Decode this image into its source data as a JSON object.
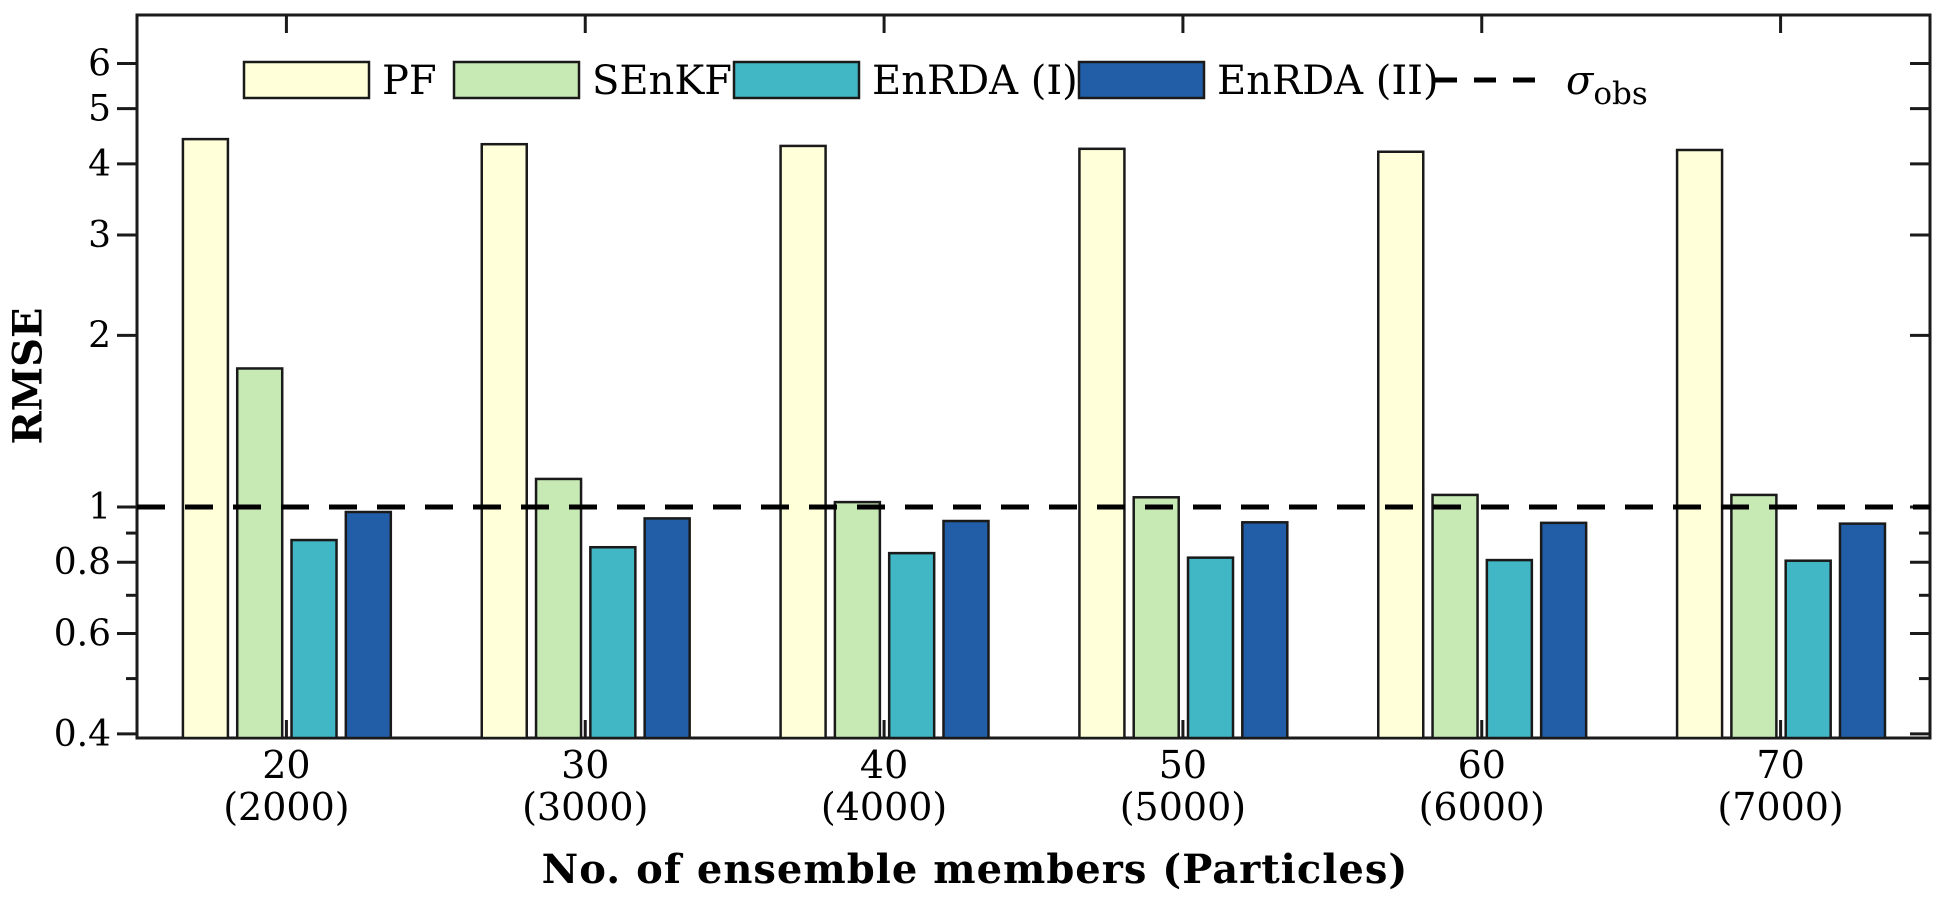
{
  "figure": {
    "y_axis_title": "RMSE",
    "x_axis_title": "No. of ensemble members (Particles)"
  },
  "chart_data": {
    "type": "bar",
    "title": "",
    "xlabel": "No. of ensemble members (Particles)",
    "ylabel": "RMSE",
    "y_scale": "log",
    "ylim": [
      0.4,
      7.3
    ],
    "grid": false,
    "yticks_major": [
      6,
      5,
      4,
      3,
      2,
      1,
      0.8,
      0.6,
      0.4
    ],
    "ytick_labels": [
      "6",
      "5",
      "4",
      "3",
      "2",
      "1",
      "0.8",
      "0.6",
      "0.4"
    ],
    "yticks_minor": [
      0.9,
      0.7,
      0.5
    ],
    "categories": [
      "20",
      "30",
      "40",
      "50",
      "60",
      "70"
    ],
    "categories_sub": [
      "(2000)",
      "(3000)",
      "(4000)",
      "(5000)",
      "(6000)",
      "(7000)"
    ],
    "series": [
      {
        "name": "PF",
        "color": "#FFFFD9",
        "values": [
          4.42,
          4.33,
          4.3,
          4.25,
          4.2,
          4.23
        ]
      },
      {
        "name": "SEnKF",
        "color": "#C7E9B4",
        "values": [
          1.75,
          1.12,
          1.02,
          1.04,
          1.05,
          1.05
        ]
      },
      {
        "name": "EnRDA (I)",
        "color": "#41B6C4",
        "values": [
          0.875,
          0.85,
          0.83,
          0.815,
          0.807,
          0.805
        ]
      },
      {
        "name": "EnRDA (II)",
        "color": "#225EA8",
        "values": [
          0.98,
          0.955,
          0.945,
          0.94,
          0.938,
          0.935
        ]
      }
    ],
    "reference_line": {
      "value": 1.0,
      "style": "dashed",
      "color": "#000000",
      "label_main": "σ",
      "label_sub": "obs"
    },
    "legend": {
      "position": "top-inside",
      "entries": [
        "PF",
        "SEnKF",
        "EnRDA (I)",
        "EnRDA (II)"
      ],
      "dashed_entry_main": "σ",
      "dashed_entry_sub": "obs"
    },
    "bar_edge_color": "#1a1a1a",
    "axis_color": "#1a1a1a"
  }
}
